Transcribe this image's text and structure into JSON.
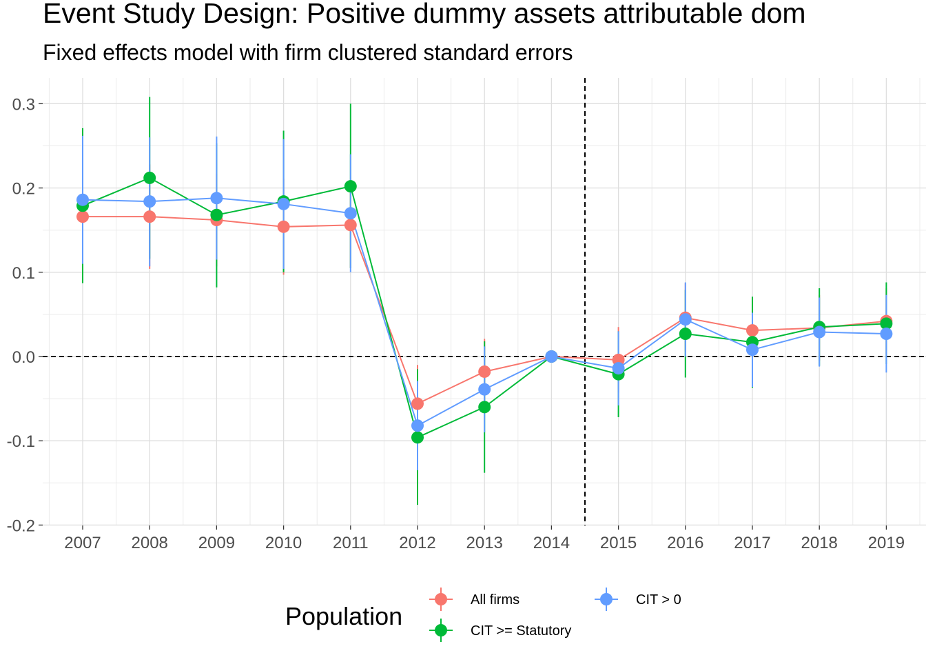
{
  "chart_data": {
    "type": "line",
    "title": "Event Study Design: Positive dummy assets attributable dom",
    "subtitle": "Fixed effects model with firm clustered standard errors",
    "xlabel": "",
    "ylabel": "",
    "categories": [
      "2007",
      "2008",
      "2009",
      "2010",
      "2011",
      "2012",
      "2013",
      "2014",
      "2015",
      "2016",
      "2017",
      "2018",
      "2019"
    ],
    "ylim": [
      -0.2,
      0.33
    ],
    "y_ticks": [
      -0.2,
      -0.1,
      0.0,
      0.1,
      0.2,
      0.3
    ],
    "y_tick_labels": [
      "-0.2",
      "-0.1",
      "0.0",
      "0.1",
      "0.2",
      "0.3"
    ],
    "grid": true,
    "reference_lines": {
      "horizontal_y": 0,
      "vertical_between": [
        "2014",
        "2015"
      ],
      "style": "dashed"
    },
    "legend": {
      "title": "Population",
      "placement": "bottom"
    },
    "series": [
      {
        "name": "All firms",
        "color": "#F8766D",
        "values": [
          0.166,
          0.166,
          0.162,
          0.154,
          0.156,
          -0.056,
          -0.018,
          0.0,
          -0.004,
          0.046,
          0.031,
          0.034,
          0.042
        ],
        "ci_low": [
          0.108,
          0.104,
          0.107,
          0.097,
          0.105,
          -0.103,
          -0.058,
          0.0,
          -0.043,
          0.006,
          -0.008,
          -0.005,
          0.003
        ],
        "ci_high": [
          0.224,
          0.228,
          0.217,
          0.211,
          0.207,
          -0.01,
          0.021,
          0.0,
          0.035,
          0.087,
          0.07,
          0.073,
          0.081
        ]
      },
      {
        "name": "CIT >= Statutory",
        "color": "#00BA38",
        "values": [
          0.179,
          0.212,
          0.168,
          0.184,
          0.202,
          -0.096,
          -0.06,
          0.0,
          -0.021,
          0.027,
          0.017,
          0.035,
          0.039
        ],
        "ci_low": [
          0.087,
          0.116,
          0.082,
          0.1,
          0.105,
          -0.176,
          -0.138,
          0.0,
          -0.072,
          -0.025,
          -0.037,
          -0.011,
          -0.009
        ],
        "ci_high": [
          0.271,
          0.308,
          0.253,
          0.268,
          0.3,
          -0.015,
          0.018,
          0.0,
          0.03,
          0.079,
          0.071,
          0.081,
          0.088
        ]
      },
      {
        "name": "CIT > 0",
        "color": "#619CFF",
        "values": [
          0.186,
          0.184,
          0.188,
          0.181,
          0.17,
          -0.082,
          -0.039,
          0.0,
          -0.014,
          0.044,
          0.008,
          0.029,
          0.027
        ],
        "ci_low": [
          0.11,
          0.107,
          0.115,
          0.104,
          0.1,
          -0.135,
          -0.09,
          0.0,
          -0.058,
          0.0,
          -0.036,
          -0.012,
          -0.019
        ],
        "ci_high": [
          0.262,
          0.26,
          0.261,
          0.258,
          0.24,
          -0.029,
          0.012,
          0.0,
          0.03,
          0.088,
          0.052,
          0.07,
          0.073
        ]
      }
    ]
  }
}
